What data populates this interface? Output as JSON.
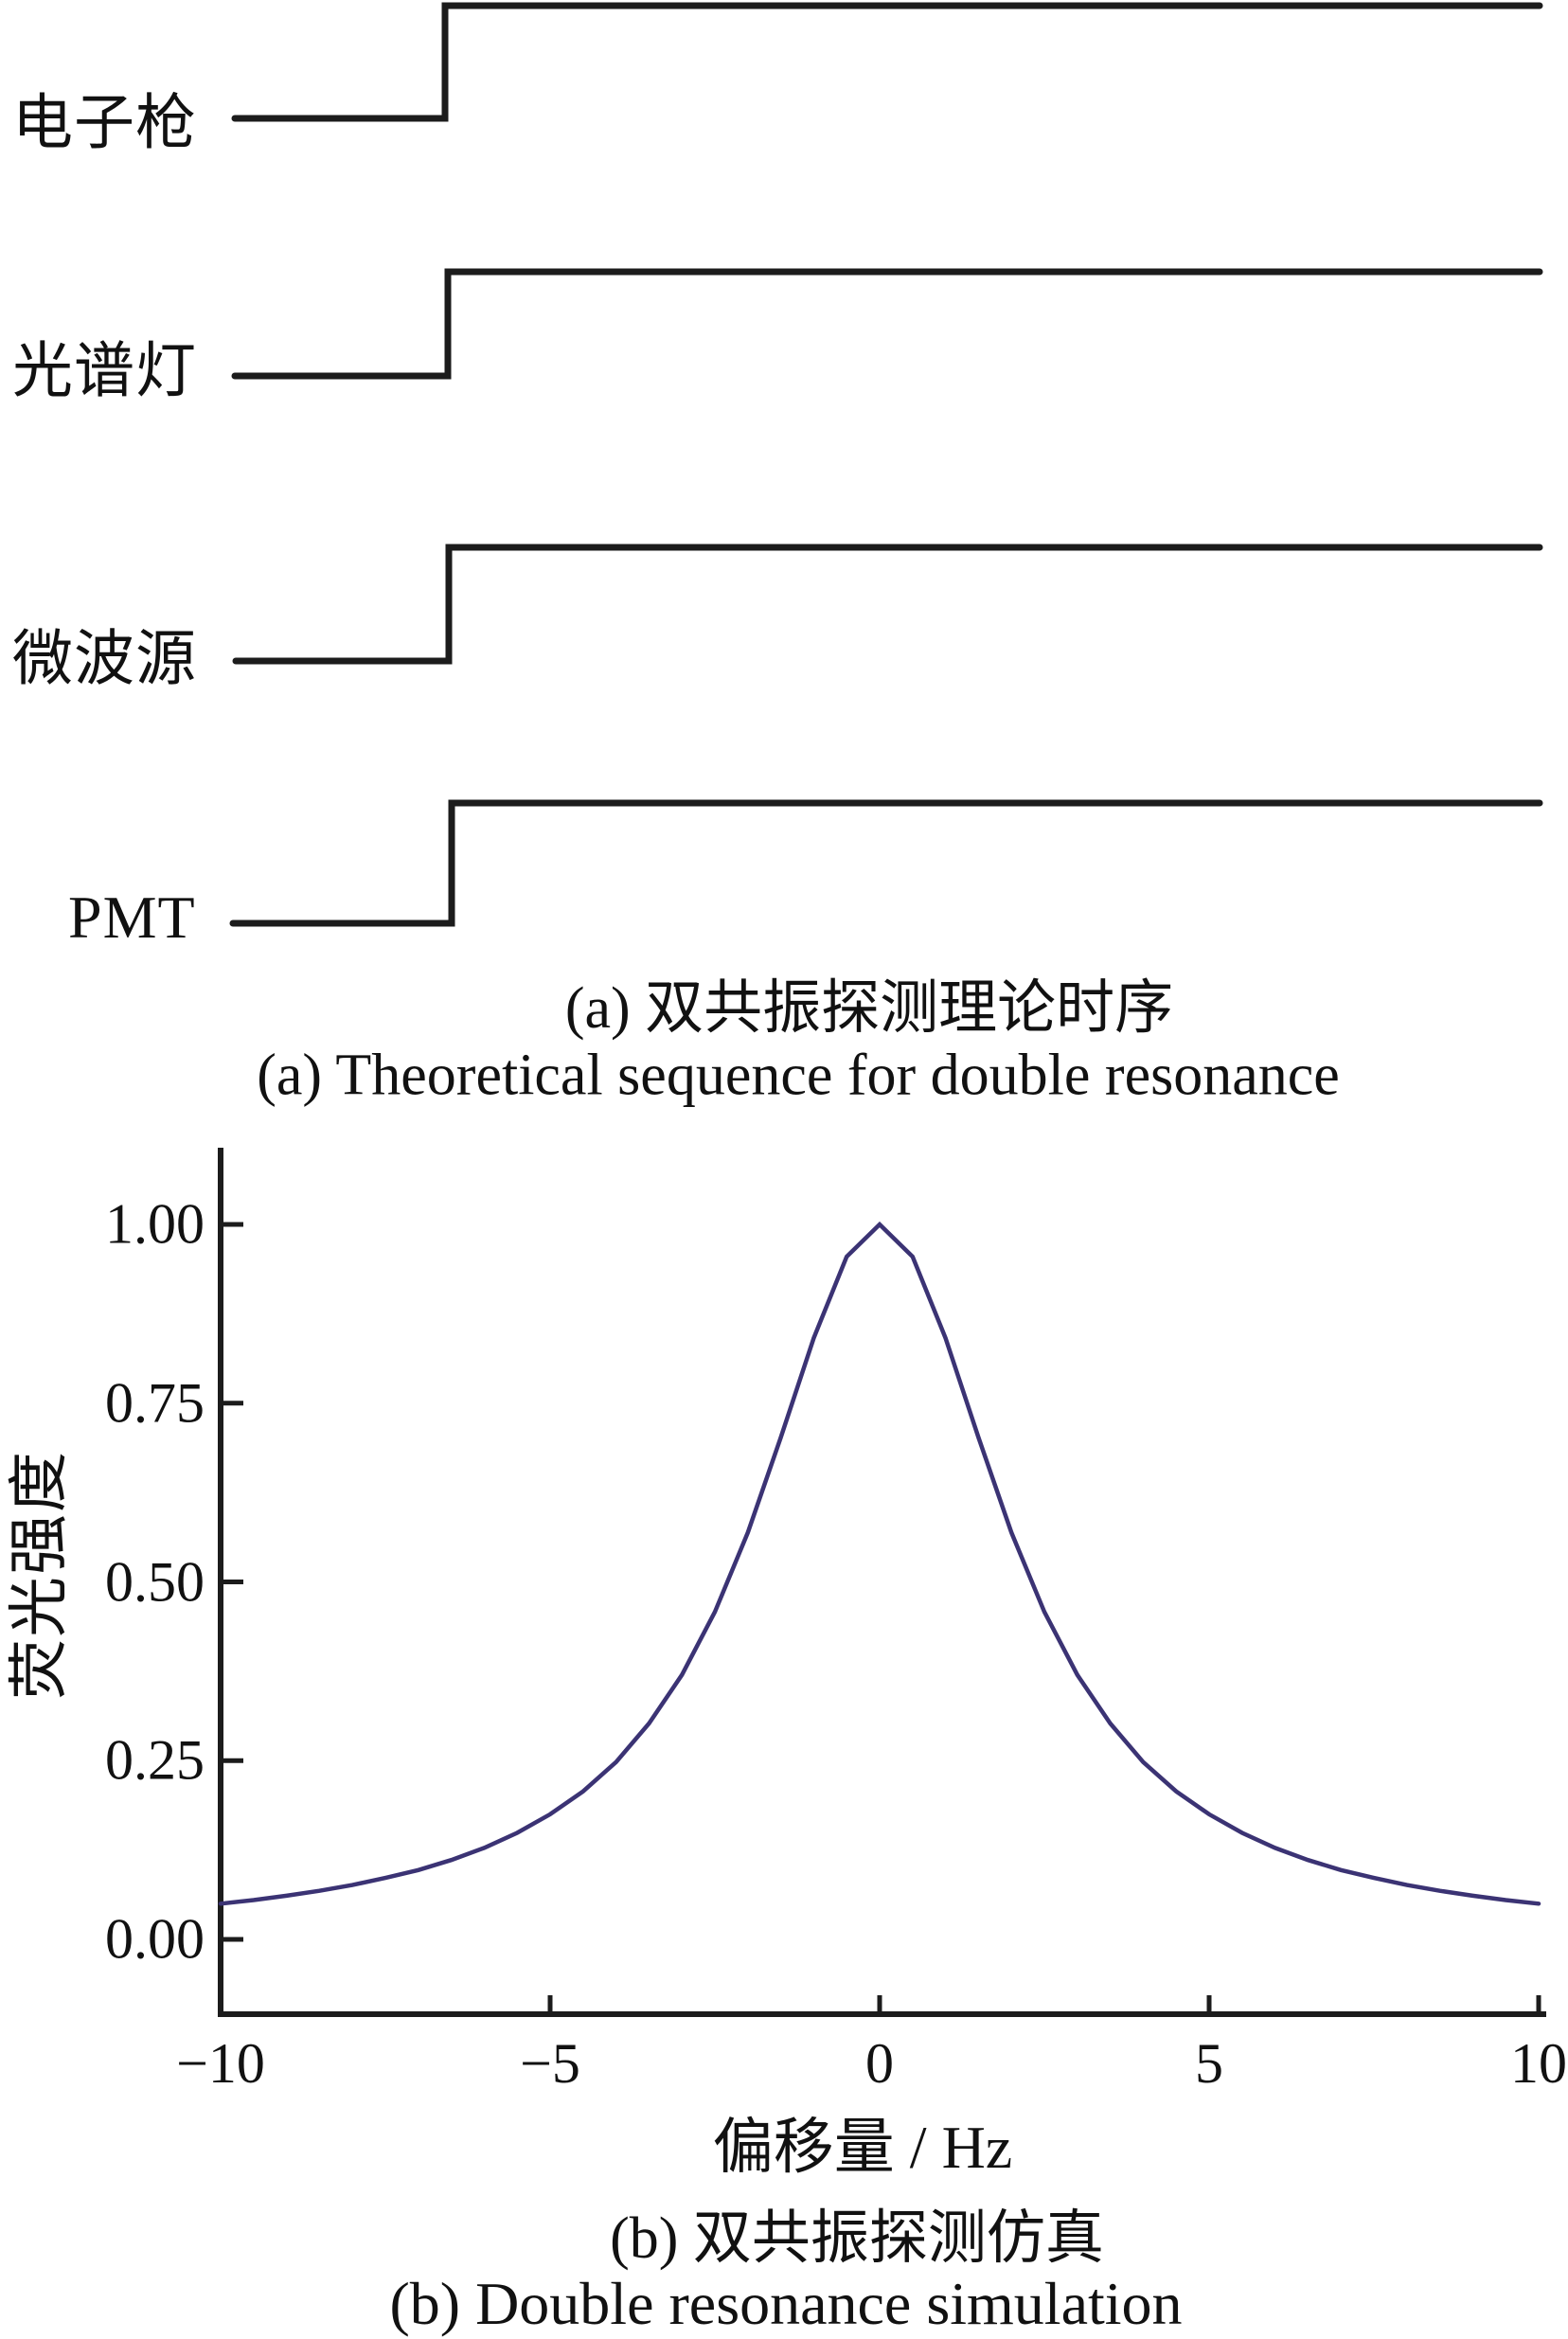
{
  "figure": {
    "panel_a": {
      "traces": [
        {
          "label": "电子枪"
        },
        {
          "label": "光谱灯"
        },
        {
          "label": "微波源"
        },
        {
          "label": "PMT"
        }
      ],
      "caption_zh": "(a) 双共振探测理论时序",
      "caption_en": "(a) Theoretical sequence for double resonance"
    },
    "panel_b": {
      "caption_zh": "(b) 双共振探测仿真",
      "caption_en": "(b) Double resonance simulation"
    }
  },
  "colors": {
    "line": "#1c1c1c",
    "curve": "#3b3374",
    "text": "#111111",
    "background": "#ffffff"
  },
  "chart_data": [
    {
      "type": "line",
      "subtype": "timing-diagram",
      "title": "(a) 双共振探测理论时序",
      "subtitle": "(a) Theoretical sequence for double resonance",
      "channels": [
        "电子枪",
        "光谱灯",
        "微波源",
        "PMT"
      ],
      "description": "Four timing channels; each signal sits at a low level then steps up once to a high level and stays high.",
      "levels": [
        "low",
        "high"
      ]
    },
    {
      "type": "line",
      "title": "(b) 双共振探测仿真",
      "subtitle": "(b) Double resonance simulation",
      "xlabel": "偏移量 / Hz",
      "ylabel": "荧光强度",
      "xlim": [
        -10,
        10
      ],
      "ylim": [
        0,
        1.0
      ],
      "x_ticks": [
        -10,
        -5,
        0,
        5,
        10
      ],
      "x_tick_labels": [
        "−10",
        "−5",
        "0",
        "5",
        "10"
      ],
      "y_ticks": [
        0,
        0.25,
        0.5,
        0.75,
        1.0
      ],
      "y_tick_labels": [
        "0.00",
        "0.25",
        "0.50",
        "0.75",
        "1.00"
      ],
      "grid": false,
      "legend": "none",
      "series": [
        {
          "name": "fluorescence-resonance-line",
          "shape": "lorentzian",
          "peak_x_hz": 0,
          "peak_y": 1.0,
          "hwhm_hz": 2.3,
          "x": [
            -10,
            -9.5,
            -9,
            -8.5,
            -8,
            -7.5,
            -7,
            -6.5,
            -6,
            -5.5,
            -5,
            -4.5,
            -4,
            -3.5,
            -3,
            -2.5,
            -2,
            -1.5,
            -1,
            -0.5,
            0,
            0.5,
            1,
            1.5,
            2,
            2.5,
            3,
            3.5,
            4,
            4.5,
            5,
            5.5,
            6,
            6.5,
            7,
            7.5,
            8,
            8.5,
            9,
            9.5,
            10
          ],
          "y": [
            0.05,
            0.055,
            0.061,
            0.068,
            0.076,
            0.086,
            0.097,
            0.111,
            0.128,
            0.149,
            0.175,
            0.207,
            0.248,
            0.302,
            0.37,
            0.458,
            0.569,
            0.702,
            0.841,
            0.955,
            1.0,
            0.955,
            0.841,
            0.702,
            0.569,
            0.458,
            0.37,
            0.302,
            0.248,
            0.207,
            0.175,
            0.149,
            0.128,
            0.111,
            0.097,
            0.086,
            0.076,
            0.068,
            0.061,
            0.055,
            0.05
          ]
        }
      ]
    }
  ]
}
